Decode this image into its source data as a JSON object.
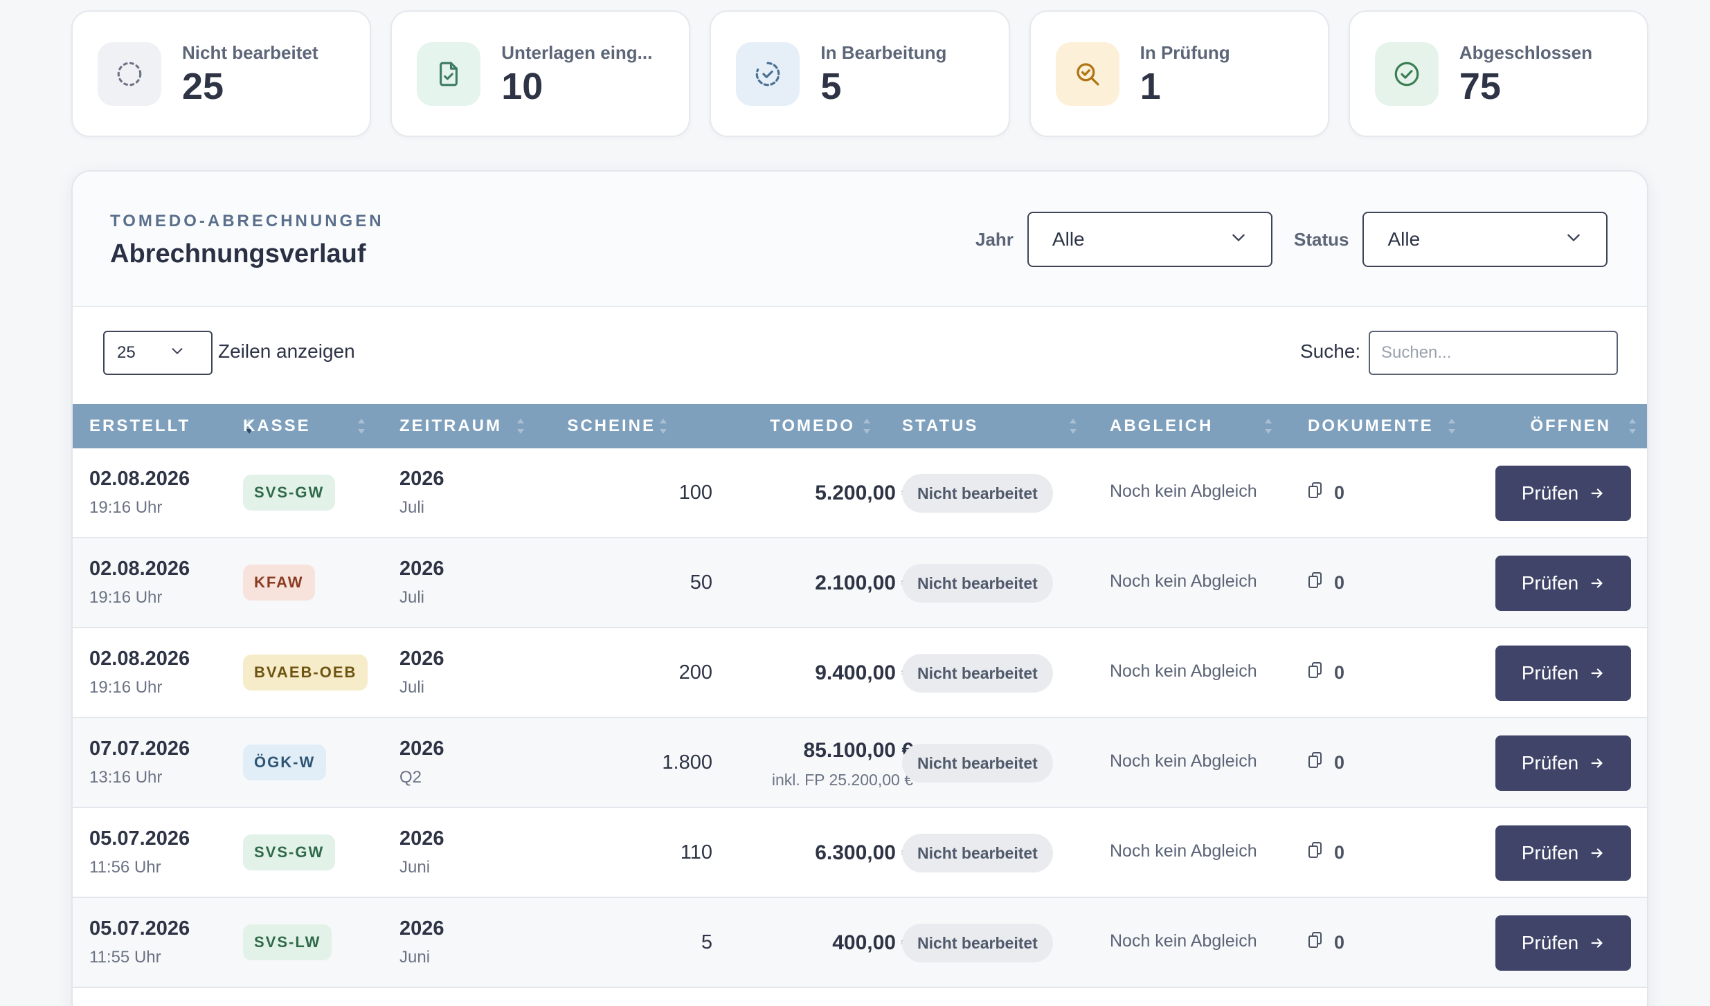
{
  "stats": [
    {
      "label": "Nicht bearbeitet",
      "value": "25",
      "icon": "dashed-circle-icon",
      "bg": "#f0f1f4",
      "color": "#6b7384"
    },
    {
      "label": "Unterlagen eing...",
      "value": "10",
      "icon": "document-check-icon",
      "bg": "#e6f4ee",
      "color": "#3f7d62"
    },
    {
      "label": "In Bearbeitung",
      "value": "5",
      "icon": "circle-progress-icon",
      "bg": "#e6eff8",
      "color": "#4a6f92"
    },
    {
      "label": "In Prüfung",
      "value": "1",
      "icon": "magnifier-check-icon",
      "bg": "#fcf0d9",
      "color": "#b07414"
    },
    {
      "label": "Abgeschlossen",
      "value": "75",
      "icon": "check-circle-icon",
      "bg": "#e5f3ea",
      "color": "#3c7d55"
    }
  ],
  "panel": {
    "eyebrow": "TOMEDO-ABRECHNUNGEN",
    "title": "Abrechnungsverlauf",
    "filters": {
      "year_label": "Jahr",
      "year_value": "Alle",
      "status_label": "Status",
      "status_value": "Alle"
    }
  },
  "toolbar": {
    "page_length": "25",
    "page_length_label": "Zeilen anzeigen",
    "search_label": "Suche:",
    "search_placeholder": "Suchen..."
  },
  "columns": [
    "ERSTELLT",
    "KASSE",
    "ZEITRAUM",
    "SCHEINE",
    "TOMEDO",
    "STATUS",
    "ABGLEICH",
    "DOKUMENTE",
    "ÖFFNEN"
  ],
  "rows": [
    {
      "date": "02.08.2026",
      "time": "19:16 Uhr",
      "kasse": "SVS-GW",
      "kasse_bg": "#e3f2e9",
      "kasse_color": "#2f6a48",
      "year": "2026",
      "period": "Juli",
      "scheine": "100",
      "tomedo": "5.200,00 €",
      "tomedo_sub": "",
      "status": "Nicht bearbeitet",
      "abgleich": "Noch kein Abgleich",
      "docs": "0",
      "action": "Prüfen"
    },
    {
      "date": "02.08.2026",
      "time": "19:16 Uhr",
      "kasse": "KFAW",
      "kasse_bg": "#f7e3dc",
      "kasse_color": "#8a3b22",
      "year": "2026",
      "period": "Juli",
      "scheine": "50",
      "tomedo": "2.100,00 €",
      "tomedo_sub": "",
      "status": "Nicht bearbeitet",
      "abgleich": "Noch kein Abgleich",
      "docs": "0",
      "action": "Prüfen"
    },
    {
      "date": "02.08.2026",
      "time": "19:16 Uhr",
      "kasse": "BVAEB-OEB",
      "kasse_bg": "#f6ecc9",
      "kasse_color": "#6e5410",
      "year": "2026",
      "period": "Juli",
      "scheine": "200",
      "tomedo": "9.400,00 €",
      "tomedo_sub": "",
      "status": "Nicht bearbeitet",
      "abgleich": "Noch kein Abgleich",
      "docs": "0",
      "action": "Prüfen"
    },
    {
      "date": "07.07.2026",
      "time": "13:16 Uhr",
      "kasse": "ÖGK-W",
      "kasse_bg": "#e1eef8",
      "kasse_color": "#2f5575",
      "year": "2026",
      "period": "Q2",
      "scheine": "1.800",
      "tomedo": "85.100,00 €",
      "tomedo_sub": "inkl. FP 25.200,00 €",
      "status": "Nicht bearbeitet",
      "abgleich": "Noch kein Abgleich",
      "docs": "0",
      "action": "Prüfen"
    },
    {
      "date": "05.07.2026",
      "time": "11:56 Uhr",
      "kasse": "SVS-GW",
      "kasse_bg": "#e3f2e9",
      "kasse_color": "#2f6a48",
      "year": "2026",
      "period": "Juni",
      "scheine": "110",
      "tomedo": "6.300,00 €",
      "tomedo_sub": "",
      "status": "Nicht bearbeitet",
      "abgleich": "Noch kein Abgleich",
      "docs": "0",
      "action": "Prüfen"
    },
    {
      "date": "05.07.2026",
      "time": "11:55 Uhr",
      "kasse": "SVS-LW",
      "kasse_bg": "#e3f2e9",
      "kasse_color": "#2f6a48",
      "year": "2026",
      "period": "Juni",
      "scheine": "5",
      "tomedo": "400,00 €",
      "tomedo_sub": "",
      "status": "Nicht bearbeitet",
      "abgleich": "Noch kein Abgleich",
      "docs": "0",
      "action": "Prüfen"
    }
  ]
}
